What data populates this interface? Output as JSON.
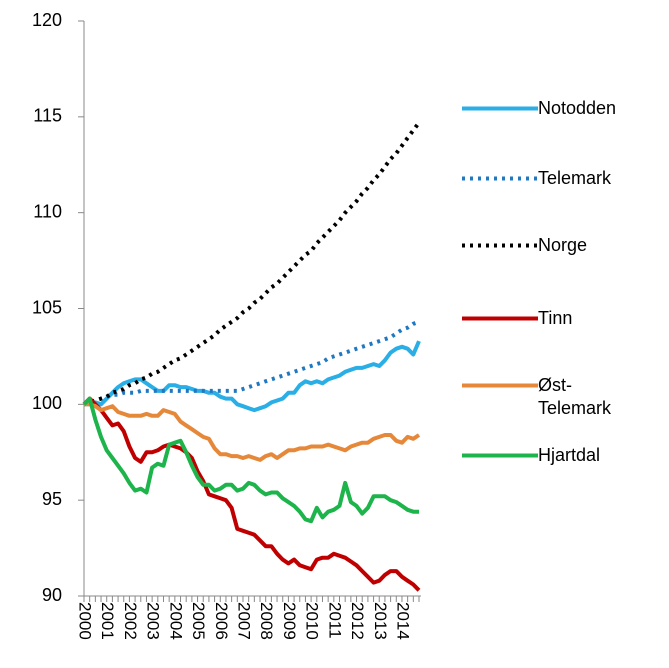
{
  "chart_data": {
    "type": "line",
    "categories": [
      "2000",
      null,
      null,
      null,
      "2001",
      null,
      null,
      null,
      "2002",
      null,
      null,
      null,
      "2003",
      null,
      null,
      null,
      "2004",
      null,
      null,
      null,
      "2005",
      null,
      null,
      null,
      "2006",
      null,
      null,
      null,
      "2007",
      null,
      null,
      null,
      "2008",
      null,
      null,
      null,
      "2009",
      null,
      null,
      null,
      "2010",
      null,
      null,
      null,
      "2011",
      null,
      null,
      null,
      "2012",
      null,
      null,
      null,
      "2013",
      null,
      null,
      null,
      "2014",
      null,
      null,
      null
    ],
    "ylim": [
      90,
      120
    ],
    "yticks": [
      90,
      95,
      100,
      105,
      110,
      115,
      120
    ],
    "grid": false,
    "legend": "right",
    "series": [
      {
        "name": "Notodden",
        "color": "#29aee6",
        "dash": "solid",
        "values": [
          100.0,
          100.0,
          100.1,
          100.0,
          100.3,
          100.6,
          100.9,
          101.1,
          101.2,
          101.3,
          101.3,
          101.1,
          100.9,
          100.7,
          100.7,
          101.0,
          101.0,
          100.9,
          100.9,
          100.8,
          100.7,
          100.7,
          100.6,
          100.6,
          100.4,
          100.3,
          100.3,
          100.0,
          99.9,
          99.8,
          99.7,
          99.8,
          99.9,
          100.1,
          100.2,
          100.3,
          100.6,
          100.6,
          101.0,
          101.2,
          101.1,
          101.2,
          101.1,
          101.3,
          101.4,
          101.5,
          101.7,
          101.8,
          101.9,
          101.9,
          102.0,
          102.1,
          102.0,
          102.3,
          102.7,
          102.9,
          103.0,
          102.9,
          102.6,
          103.3
        ]
      },
      {
        "name": "Telemark",
        "color": "#1f78c1",
        "dash": "dotted",
        "values": [
          100.0,
          100.1,
          100.2,
          100.3,
          100.4,
          100.5,
          100.5,
          100.6,
          100.6,
          100.6,
          100.7,
          100.7,
          100.7,
          100.7,
          100.7,
          100.7,
          100.7,
          100.7,
          100.7,
          100.7,
          100.7,
          100.7,
          100.7,
          100.7,
          100.7,
          100.7,
          100.7,
          100.7,
          100.8,
          100.9,
          101.0,
          101.1,
          101.2,
          101.3,
          101.4,
          101.5,
          101.6,
          101.7,
          101.8,
          101.9,
          102.0,
          102.1,
          102.2,
          102.4,
          102.5,
          102.6,
          102.7,
          102.8,
          102.9,
          103.0,
          103.1,
          103.2,
          103.3,
          103.4,
          103.5,
          103.7,
          103.9,
          104.0,
          104.2,
          104.3
        ]
      },
      {
        "name": "Norge",
        "color": "#000000",
        "dash": "dotted",
        "values": [
          100.0,
          100.1,
          100.2,
          100.3,
          100.4,
          100.6,
          100.7,
          100.8,
          101.0,
          101.1,
          101.3,
          101.4,
          101.6,
          101.7,
          101.9,
          102.1,
          102.3,
          102.4,
          102.6,
          102.8,
          103.0,
          103.2,
          103.4,
          103.6,
          103.9,
          104.1,
          104.3,
          104.5,
          104.8,
          105.0,
          105.3,
          105.5,
          105.8,
          106.1,
          106.3,
          106.6,
          106.9,
          107.2,
          107.5,
          107.8,
          108.0,
          108.4,
          108.7,
          109.0,
          109.3,
          109.6,
          110.0,
          110.3,
          110.6,
          111.0,
          111.3,
          111.7,
          112.0,
          112.4,
          112.8,
          113.1,
          113.5,
          113.9,
          114.3,
          114.7
        ]
      },
      {
        "name": "Tinn",
        "color": "#c00000",
        "dash": "solid",
        "values": [
          100.0,
          100.3,
          100.0,
          99.7,
          99.3,
          98.9,
          99.0,
          98.6,
          97.8,
          97.2,
          97.0,
          97.5,
          97.5,
          97.6,
          97.8,
          97.9,
          97.8,
          97.7,
          97.5,
          97.2,
          96.5,
          96.0,
          95.3,
          95.2,
          95.1,
          95.0,
          94.6,
          93.5,
          93.4,
          93.3,
          93.2,
          92.9,
          92.6,
          92.6,
          92.2,
          91.9,
          91.7,
          91.9,
          91.6,
          91.5,
          91.4,
          91.9,
          92.0,
          92.0,
          92.2,
          92.1,
          92.0,
          91.8,
          91.6,
          91.3,
          91.0,
          90.7,
          90.8,
          91.1,
          91.3,
          91.3,
          91.0,
          90.8,
          90.6,
          90.3
        ]
      },
      {
        "name": "Øst-Telemark",
        "color": "#e6883a",
        "dash": "solid",
        "values": [
          100.0,
          100.0,
          99.9,
          99.7,
          99.8,
          99.9,
          99.6,
          99.5,
          99.4,
          99.4,
          99.4,
          99.5,
          99.4,
          99.4,
          99.7,
          99.6,
          99.5,
          99.1,
          98.9,
          98.7,
          98.5,
          98.3,
          98.2,
          97.7,
          97.4,
          97.4,
          97.3,
          97.3,
          97.2,
          97.3,
          97.2,
          97.1,
          97.3,
          97.4,
          97.2,
          97.4,
          97.6,
          97.6,
          97.7,
          97.7,
          97.8,
          97.8,
          97.8,
          97.9,
          97.8,
          97.7,
          97.6,
          97.8,
          97.9,
          98.0,
          98.0,
          98.2,
          98.3,
          98.4,
          98.4,
          98.1,
          98.0,
          98.3,
          98.2,
          98.4
        ]
      },
      {
        "name": "Hjartdal",
        "color": "#1db44b",
        "dash": "solid",
        "values": [
          100.0,
          100.3,
          99.2,
          98.3,
          97.6,
          97.2,
          96.8,
          96.4,
          95.9,
          95.5,
          95.6,
          95.4,
          96.7,
          96.9,
          96.8,
          97.9,
          98.0,
          98.1,
          97.5,
          96.8,
          96.2,
          95.8,
          95.8,
          95.5,
          95.6,
          95.8,
          95.8,
          95.5,
          95.6,
          95.9,
          95.8,
          95.5,
          95.3,
          95.4,
          95.4,
          95.1,
          94.9,
          94.7,
          94.4,
          94.0,
          93.9,
          94.6,
          94.1,
          94.4,
          94.5,
          94.7,
          95.9,
          94.9,
          94.7,
          94.3,
          94.6,
          95.2,
          95.2,
          95.2,
          95.0,
          94.9,
          94.7,
          94.5,
          94.4,
          94.4
        ]
      }
    ]
  }
}
